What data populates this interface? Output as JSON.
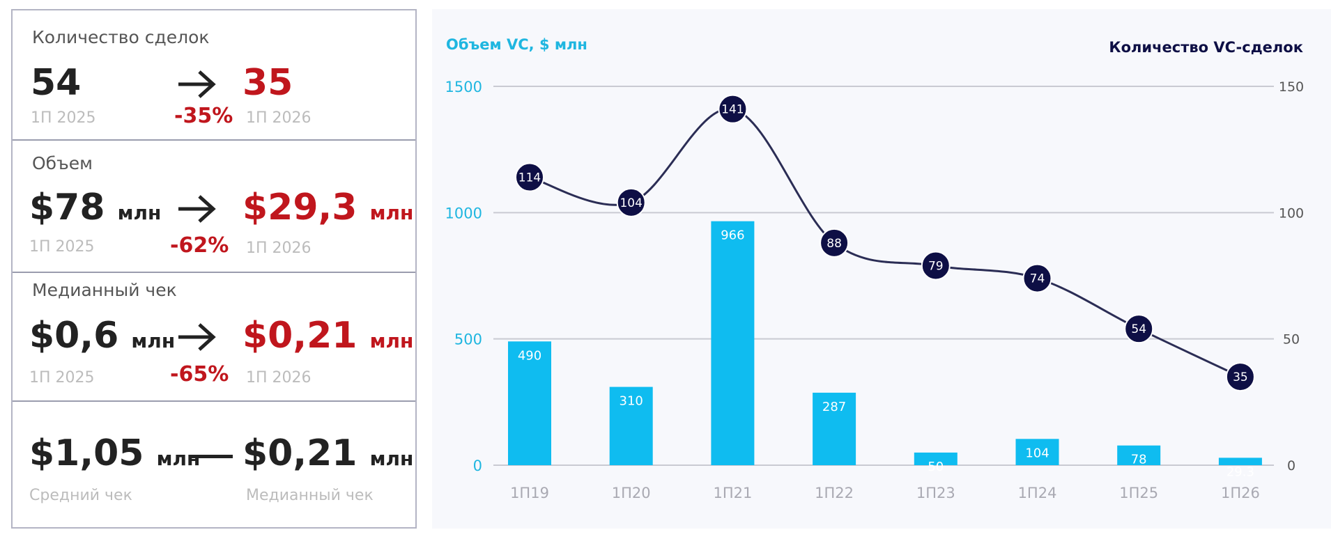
{
  "stats": {
    "deals": {
      "title": "Количество сделок",
      "from_value": "54",
      "from_period": "1П 2025",
      "to_value": "35",
      "to_period": "1П 2026",
      "change": "-35%"
    },
    "volume": {
      "title": "Объем",
      "from_value": "$78",
      "from_unit": "млн",
      "from_period": "1П 2025",
      "to_value": "$29,3",
      "to_unit": "млн",
      "to_period": "1П 2026",
      "change": "-62%"
    },
    "median": {
      "title": "Медианный чек",
      "from_value": "$0,6",
      "from_unit": "млн",
      "from_period": "1П 2025",
      "to_value": "$0,21",
      "to_unit": "млн",
      "to_period": "1П 2026",
      "change": "-65%"
    },
    "average": {
      "left_value": "$1,05",
      "left_unit": "млн",
      "left_label": "Средний чек",
      "right_value": "$0,21",
      "right_unit": "млн",
      "right_label": "Медианный чек"
    }
  },
  "chart_data": {
    "type": "bar",
    "categories": [
      "1П19",
      "1П20",
      "1П21",
      "1П22",
      "1П23",
      "1П24",
      "1П25",
      "1П26"
    ],
    "series": [
      {
        "values": [
          490,
          310,
          966,
          287,
          50,
          104,
          78,
          29.3
        ],
        "labels": [
          "490",
          "310",
          "966",
          "287",
          "50",
          "104",
          "78",
          "29.3"
        ],
        "color": "#0fbcf0",
        "axis": "left",
        "type": "bar"
      },
      {
        "values": [
          114,
          104,
          141,
          88,
          79,
          74,
          54,
          35
        ],
        "labels": [
          "114",
          "104",
          "141",
          "88",
          "79",
          "74",
          "54",
          "35"
        ],
        "color": "#0e0f45",
        "axis": "right",
        "type": "line"
      }
    ],
    "y_left": {
      "label": "Объем VC, $ млн",
      "ylim": [
        0,
        1500
      ],
      "ticks": [
        "0",
        "500",
        "1000",
        "1500"
      ],
      "color": "#1fb6e0"
    },
    "y_right": {
      "label": "Количество VC-сделок",
      "ylim": [
        0,
        150
      ],
      "ticks": [
        "0",
        "50",
        "100",
        "150"
      ],
      "color": "#0e0f45"
    },
    "grid": true
  }
}
